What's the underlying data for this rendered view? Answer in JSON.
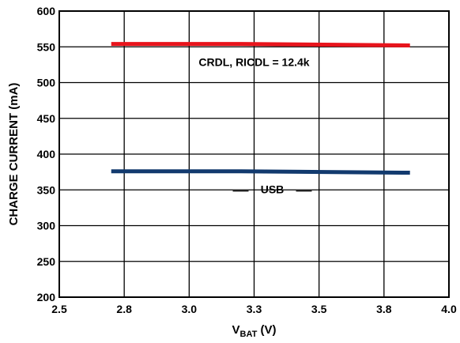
{
  "chart_data": {
    "type": "line",
    "xlabel": "V",
    "xlabel_sub": "BAT",
    "xlabel_unit": " (V)",
    "ylabel": "CHARGE CURRENT (mA)",
    "xlim": [
      2.5,
      4.0
    ],
    "ylim": [
      200,
      600
    ],
    "x_ticks": [
      2.5,
      2.75,
      3.0,
      3.25,
      3.5,
      3.75,
      4.0
    ],
    "x_tick_labels": [
      "2.5",
      "2.8",
      "3.0",
      "3.3",
      "3.5",
      "3.8",
      "4.0"
    ],
    "y_ticks": [
      200,
      250,
      300,
      350,
      400,
      450,
      500,
      550,
      600
    ],
    "y_tick_labels": [
      "200",
      "250",
      "300",
      "350",
      "400",
      "450",
      "500",
      "550",
      "600"
    ],
    "grid": true,
    "series": [
      {
        "name": "CRDL, RICDL = 12.4k",
        "color": "#e8141c",
        "x": [
          2.7,
          3.2,
          3.85
        ],
        "y": [
          554,
          554,
          552
        ]
      },
      {
        "name": "USB",
        "color": "#123a6e",
        "x": [
          2.7,
          3.2,
          3.85
        ],
        "y": [
          376,
          376,
          374
        ]
      }
    ]
  }
}
